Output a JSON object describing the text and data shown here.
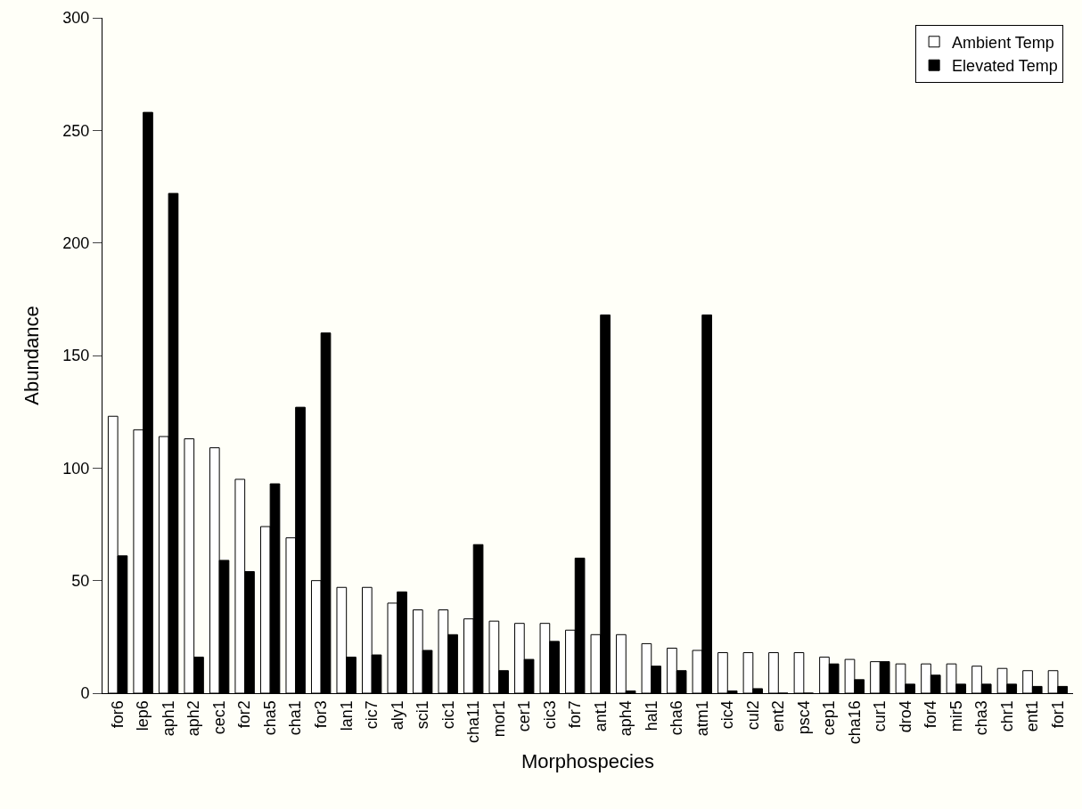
{
  "chart_data": {
    "type": "bar",
    "xlabel": "Morphospecies",
    "ylabel": "Abundance",
    "categories": [
      "for6",
      "lep6",
      "aph1",
      "aph2",
      "cec1",
      "for2",
      "cha5",
      "cha1",
      "for3",
      "lan1",
      "cic7",
      "aly1",
      "sci1",
      "cic1",
      "cha11",
      "mor1",
      "cer1",
      "cic3",
      "for7",
      "ant1",
      "aph4",
      "hal1",
      "cha6",
      "atm1",
      "cic4",
      "cul2",
      "ent2",
      "psc4",
      "cep1",
      "cha16",
      "cur1",
      "dro4",
      "for4",
      "mir5",
      "cha3",
      "chr1",
      "ent1",
      "for1"
    ],
    "series": [
      {
        "name": "Ambient Temp",
        "color": "#ffffff",
        "values": [
          123,
          117,
          114,
          113,
          109,
          95,
          74,
          69,
          50,
          47,
          47,
          40,
          37,
          37,
          33,
          32,
          31,
          31,
          28,
          26,
          26,
          22,
          20,
          19,
          18,
          18,
          18,
          18,
          16,
          15,
          14,
          13,
          13,
          13,
          12,
          11,
          10,
          10
        ]
      },
      {
        "name": "Elevated Temp",
        "color": "#000000",
        "values": [
          61,
          258,
          222,
          16,
          59,
          54,
          93,
          127,
          160,
          16,
          17,
          45,
          19,
          26,
          66,
          10,
          15,
          23,
          60,
          168,
          1,
          12,
          10,
          168,
          1,
          2,
          0,
          0,
          13,
          6,
          14,
          4,
          8,
          4,
          4,
          4,
          3,
          3
        ]
      }
    ],
    "ylim": [
      0,
      300
    ],
    "yticks": [
      0,
      50,
      100,
      150,
      200,
      250,
      300
    ],
    "grid": false,
    "legend": "top right"
  }
}
